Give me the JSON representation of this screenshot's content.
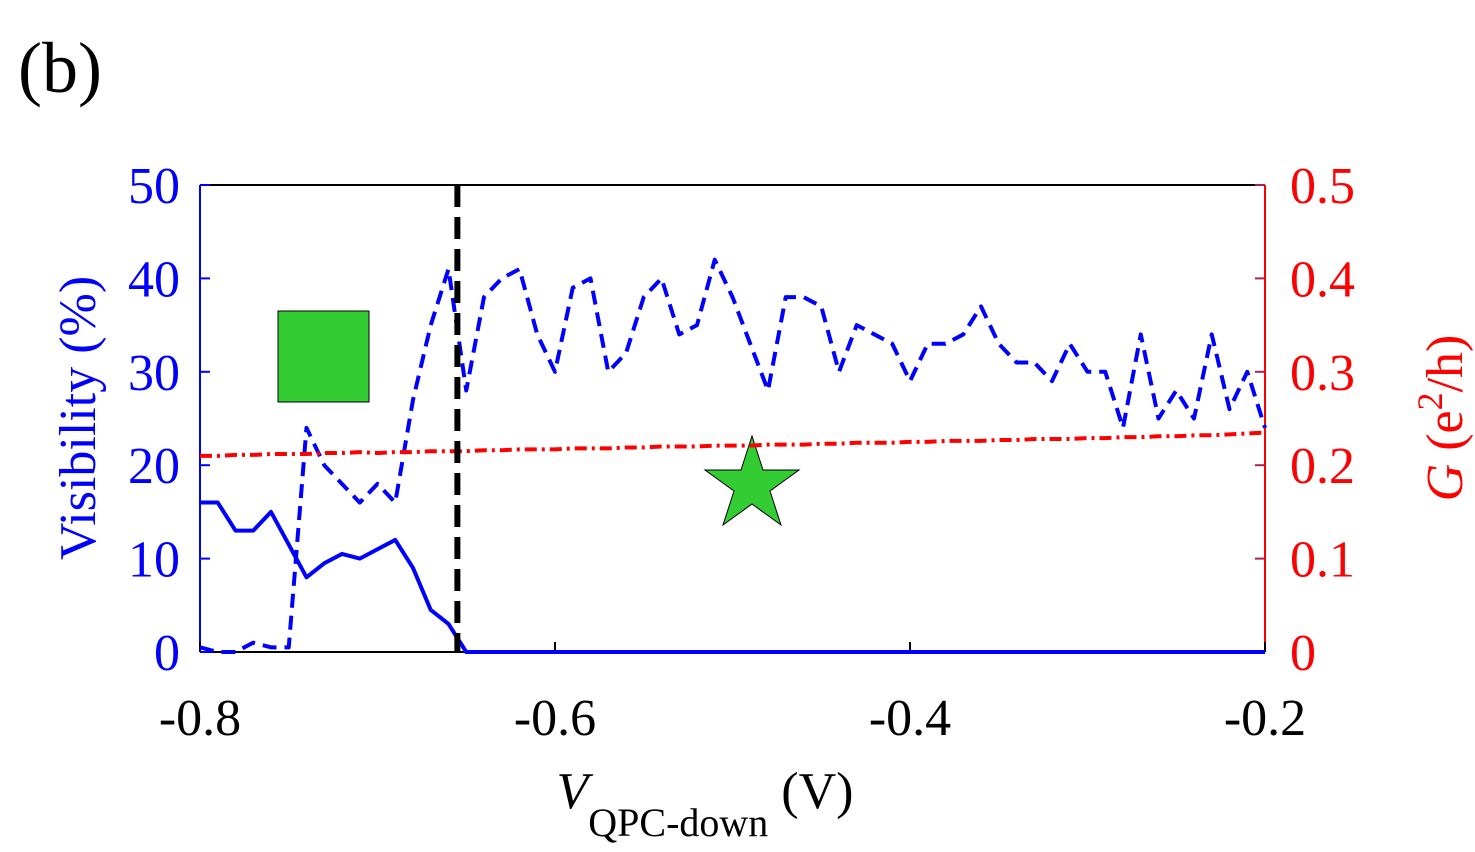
{
  "chart_data": {
    "type": "line",
    "panel_label": "(b)",
    "ylabel": "Visibility (%)",
    "y2label": [
      "G",
      " (e",
      "2",
      "/h)"
    ],
    "xlabel": [
      "V",
      "QPC-down",
      " (V)"
    ],
    "x": [
      -0.8,
      -0.79,
      -0.78,
      -0.77,
      -0.76,
      -0.75,
      -0.74,
      -0.73,
      -0.72,
      -0.71,
      -0.7,
      -0.69,
      -0.68,
      -0.67,
      -0.66,
      -0.65,
      -0.64,
      -0.63,
      -0.62,
      -0.61,
      -0.6,
      -0.59,
      -0.58,
      -0.57,
      -0.56,
      -0.55,
      -0.54,
      -0.53,
      -0.52,
      -0.51,
      -0.5,
      -0.49,
      -0.48,
      -0.47,
      -0.46,
      -0.45,
      -0.44,
      -0.43,
      -0.42,
      -0.41,
      -0.4,
      -0.39,
      -0.38,
      -0.37,
      -0.36,
      -0.35,
      -0.34,
      -0.33,
      -0.32,
      -0.31,
      -0.3,
      -0.29,
      -0.28,
      -0.27,
      -0.26,
      -0.25,
      -0.24,
      -0.23,
      -0.22,
      -0.21,
      -0.2
    ],
    "series": [
      {
        "color": "#0000ff",
        "dash": "solid",
        "axis": "y",
        "values": [
          16,
          16,
          13,
          13,
          15,
          11.5,
          8,
          9.5,
          10.5,
          10,
          11,
          12,
          9,
          4.5,
          3,
          0,
          0,
          0,
          0,
          0,
          0,
          0,
          0,
          0,
          0,
          0,
          0,
          0,
          0,
          0,
          0,
          0,
          0,
          0,
          0,
          0,
          0,
          0,
          0,
          0,
          0,
          0,
          0,
          0,
          0,
          0,
          0,
          0,
          0,
          0,
          0,
          0,
          0,
          0,
          0,
          0,
          0,
          0,
          0,
          0,
          0
        ]
      },
      {
        "color": "#0000ff",
        "dash": "dashed",
        "axis": "y",
        "values": [
          0.5,
          0,
          0,
          1,
          0.5,
          0.5,
          24,
          20,
          18,
          16,
          18,
          16,
          27,
          35,
          41,
          28,
          38,
          40,
          41,
          34,
          30,
          39,
          40,
          30,
          32,
          38,
          40,
          34,
          35,
          42,
          38,
          33,
          28,
          38,
          38,
          37,
          30,
          35,
          34,
          33,
          29,
          33,
          33,
          34,
          37,
          33,
          31,
          31,
          29,
          33,
          30,
          30,
          24,
          34,
          25,
          28,
          25,
          34,
          26,
          30,
          24
        ]
      },
      {
        "color": "#ff0000",
        "dash": "dashdot",
        "axis": "y2",
        "values": [
          0.21,
          0.21,
          0.211,
          0.211,
          0.212,
          0.212,
          0.212,
          0.213,
          0.213,
          0.214,
          0.213,
          0.214,
          0.214,
          0.215,
          0.215,
          0.215,
          0.216,
          0.216,
          0.217,
          0.217,
          0.217,
          0.218,
          0.218,
          0.218,
          0.219,
          0.219,
          0.22,
          0.22,
          0.22,
          0.221,
          0.221,
          0.221,
          0.222,
          0.222,
          0.222,
          0.223,
          0.223,
          0.224,
          0.224,
          0.224,
          0.225,
          0.225,
          0.226,
          0.226,
          0.226,
          0.227,
          0.227,
          0.228,
          0.228,
          0.228,
          0.229,
          0.229,
          0.23,
          0.23,
          0.231,
          0.231,
          0.232,
          0.232,
          0.233,
          0.234,
          0.235
        ]
      }
    ],
    "vline_x": -0.655,
    "xlim": [
      -0.8,
      -0.2
    ],
    "xticks": [
      -0.8,
      -0.6,
      -0.4,
      -0.2
    ],
    "ylim": [
      0,
      50
    ],
    "yticks": [
      0,
      10,
      20,
      30,
      40,
      50
    ],
    "y2lim": [
      0,
      0.5
    ],
    "y2ticks": [
      0,
      0.1,
      0.2,
      0.3,
      0.4,
      0.5
    ]
  }
}
